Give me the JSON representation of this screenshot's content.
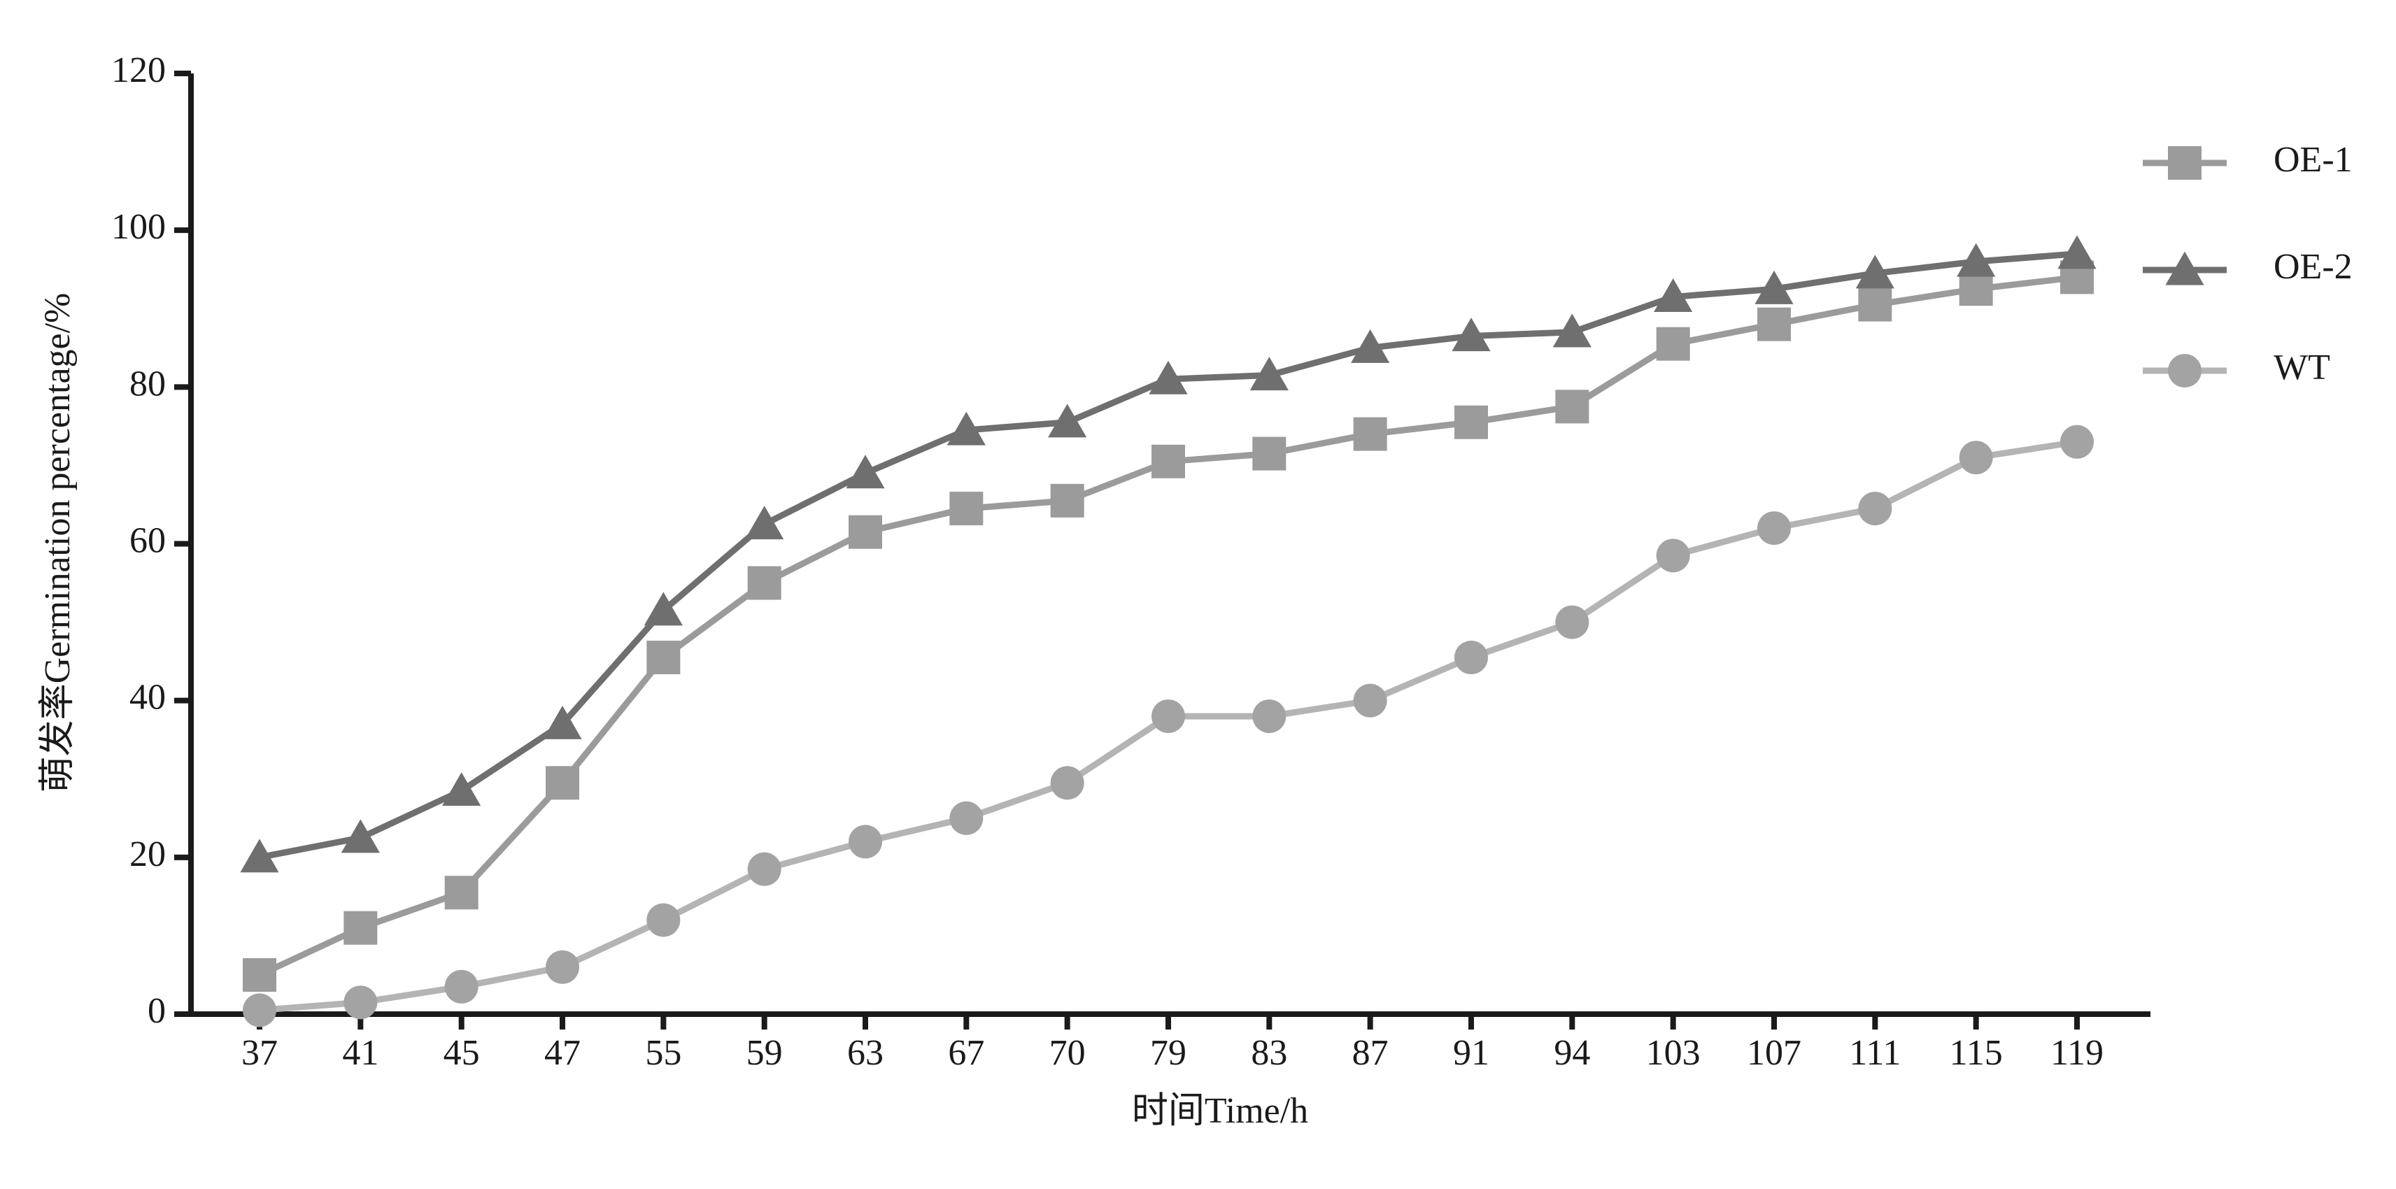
{
  "chart_data": {
    "type": "line",
    "x_label": "时间Time/h",
    "y_label": "萌发率Germination percentage/%",
    "categories": [
      "37",
      "41",
      "45",
      "47",
      "55",
      "59",
      "63",
      "67",
      "70",
      "79",
      "83",
      "87",
      "91",
      "94",
      "103",
      "107",
      "111",
      "115",
      "119"
    ],
    "series": [
      {
        "name": "OE-1",
        "color": "#9b9b9b",
        "marker": "square",
        "values": [
          5,
          11,
          15.5,
          29.5,
          45.5,
          55,
          61.5,
          64.5,
          65.5,
          70.5,
          71.5,
          74,
          75.5,
          77.5,
          85.5,
          88,
          90.5,
          92.5,
          94
        ]
      },
      {
        "name": "OE-2",
        "color": "#6f6f6f",
        "marker": "triangle",
        "values": [
          20,
          22.5,
          28.5,
          37,
          51.5,
          62.5,
          69,
          74.5,
          75.5,
          81,
          81.5,
          85,
          86.5,
          87,
          91.5,
          92.5,
          94.5,
          96,
          97
        ]
      },
      {
        "name": "WT",
        "color": "#b4b4b4",
        "marker": "circle",
        "values": [
          0.5,
          1.5,
          3.5,
          6,
          12,
          18.5,
          22,
          25,
          29.5,
          38,
          38,
          40,
          45.5,
          50,
          58.5,
          62,
          64.5,
          71,
          73
        ]
      }
    ],
    "ylim": [
      0,
      120
    ],
    "yticks": [
      0,
      20,
      40,
      60,
      80,
      100,
      120
    ],
    "grid": false,
    "legend": "right"
  }
}
